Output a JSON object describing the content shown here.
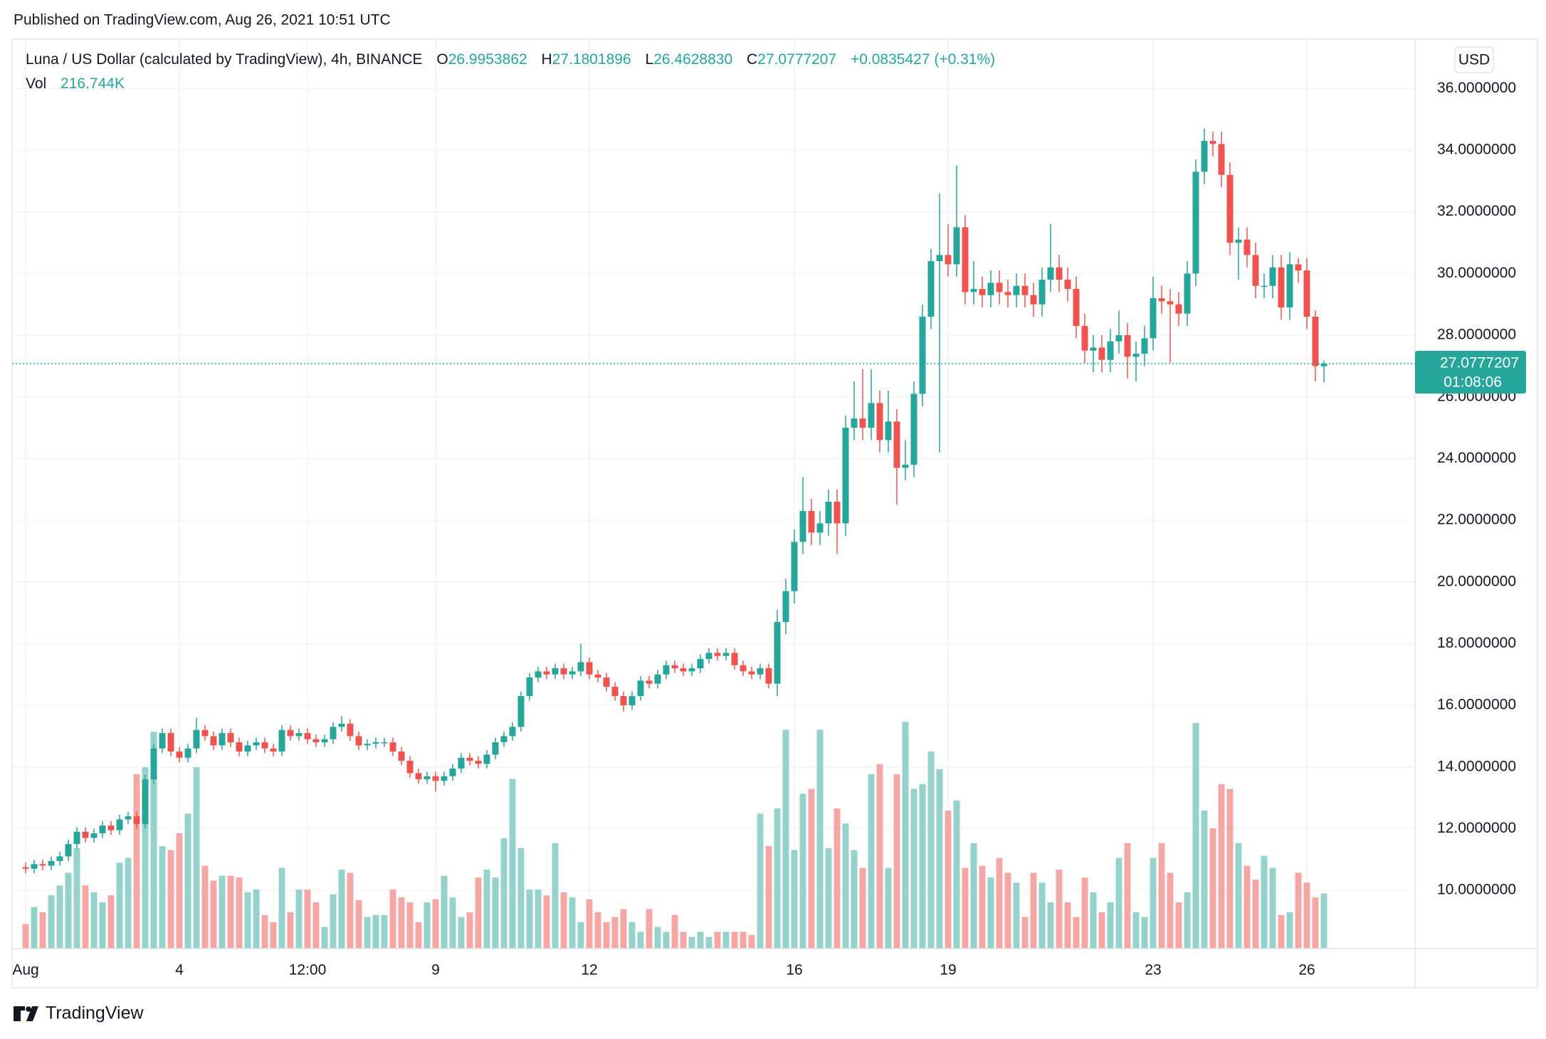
{
  "header": {
    "published": "Published on TradingView.com, Aug 26, 2021 10:51 UTC",
    "logo": "TradingView"
  },
  "chart_data": {
    "type": "candlestick",
    "title": "Luna / US Dollar (calculated by TradingView), 4h, BINANCE",
    "legend_values": [
      {
        "label": "O",
        "value": "26.9953862"
      },
      {
        "label": "H",
        "value": "27.1801896"
      },
      {
        "label": "L",
        "value": "26.4628830"
      },
      {
        "label": "C",
        "value": "27.0777207"
      }
    ],
    "change": "+0.0835427 (+0.31%)",
    "volume_name": "Vol",
    "volume_label": "216.744K",
    "currency": "USD",
    "last_price": {
      "value": 27.0777207,
      "label": "27.0777207"
    },
    "countdown": "01:08:06",
    "up_color": "#26a69a",
    "down_color": "#ef5350",
    "volume_up_color": "#94d2cb",
    "volume_down_color": "#f4a7a5",
    "grid": true,
    "ylim": [
      8.11,
      37.6
    ],
    "yticks": [
      {
        "value": 10,
        "label": "10.0000000"
      },
      {
        "value": 12,
        "label": "12.0000000"
      },
      {
        "value": 14,
        "label": "14.0000000"
      },
      {
        "value": 16,
        "label": "16.0000000"
      },
      {
        "value": 18,
        "label": "18.0000000"
      },
      {
        "value": 20,
        "label": "20.0000000"
      },
      {
        "value": 22,
        "label": "22.0000000"
      },
      {
        "value": 24,
        "label": "24.0000000"
      },
      {
        "value": 26,
        "label": "26.0000000"
      },
      {
        "value": 28,
        "label": "28.0000000"
      },
      {
        "value": 30,
        "label": "30.0000000"
      },
      {
        "value": 32,
        "label": "32.0000000"
      },
      {
        "value": 34,
        "label": "34.0000000"
      },
      {
        "value": 36,
        "label": "36.0000000"
      }
    ],
    "y2lim": [
      0,
      3570000
    ],
    "categories": [
      "Aug",
      null,
      null,
      null,
      null,
      null,
      null,
      null,
      null,
      null,
      null,
      null,
      null,
      null,
      null,
      null,
      null,
      null,
      "4",
      null,
      null,
      null,
      null,
      null,
      null,
      null,
      null,
      null,
      null,
      null,
      null,
      null,
      null,
      "12:00",
      null,
      null,
      null,
      null,
      null,
      null,
      null,
      null,
      null,
      null,
      null,
      null,
      null,
      null,
      "9",
      null,
      null,
      null,
      null,
      null,
      null,
      null,
      null,
      null,
      null,
      null,
      null,
      null,
      null,
      null,
      null,
      null,
      "12",
      null,
      null,
      null,
      null,
      null,
      null,
      null,
      null,
      null,
      null,
      null,
      null,
      null,
      null,
      null,
      null,
      null,
      null,
      null,
      null,
      null,
      null,
      null,
      "16",
      null,
      null,
      null,
      null,
      null,
      null,
      null,
      null,
      null,
      null,
      null,
      null,
      null,
      null,
      null,
      null,
      null,
      "19",
      null,
      null,
      null,
      null,
      null,
      null,
      null,
      null,
      null,
      null,
      null,
      null,
      null,
      null,
      null,
      null,
      null,
      null,
      null,
      null,
      null,
      null,
      null,
      "23",
      null,
      null,
      null,
      null,
      null,
      null,
      null,
      null,
      null,
      null,
      null,
      null,
      null,
      null,
      null,
      null,
      null,
      "26",
      null,
      null
    ],
    "open": [
      10.75,
      10.7,
      10.85,
      10.8,
      10.95,
      11.1,
      11.5,
      11.9,
      11.7,
      11.85,
      12.1,
      11.95,
      12.3,
      12.4,
      12.15,
      13.6,
      14.6,
      15.1,
      14.5,
      14.3,
      14.6,
      15.2,
      15.0,
      14.7,
      15.1,
      14.8,
      14.5,
      14.7,
      14.8,
      14.6,
      14.5,
      15.2,
      15.0,
      15.1,
      14.9,
      14.8,
      14.9,
      15.3,
      15.4,
      15.0,
      14.7,
      14.75,
      14.8,
      14.8,
      14.5,
      14.2,
      13.8,
      13.6,
      13.7,
      13.55,
      13.7,
      13.95,
      14.3,
      14.2,
      14.1,
      14.4,
      14.8,
      15.0,
      15.3,
      16.3,
      16.9,
      17.1,
      17.0,
      17.2,
      17.0,
      17.1,
      17.4,
      17.0,
      16.9,
      16.6,
      16.3,
      16.0,
      16.3,
      16.8,
      16.7,
      17.0,
      17.3,
      17.2,
      17.1,
      17.2,
      17.5,
      17.7,
      17.6,
      17.7,
      17.3,
      17.1,
      17.0,
      17.2,
      16.7,
      18.7,
      19.7,
      21.3,
      22.3,
      21.6,
      21.9,
      22.6,
      21.9,
      25.0,
      25.3,
      25.0,
      25.8,
      24.6,
      25.2,
      23.7,
      23.8,
      26.1,
      28.6,
      30.4,
      30.6,
      30.3,
      31.5,
      29.4,
      29.5,
      29.3,
      29.7,
      29.4,
      29.3,
      29.6,
      29.3,
      29.0,
      29.8,
      30.2,
      29.8,
      29.5,
      28.3,
      27.5,
      27.6,
      27.2,
      27.8,
      28.0,
      27.3,
      27.4,
      27.9,
      29.2,
      29.1,
      29.0,
      28.7,
      30.0,
      33.3,
      34.3,
      34.2,
      33.2,
      31.0,
      31.1,
      30.6,
      29.6,
      29.6,
      30.2,
      28.9,
      30.3,
      30.1,
      28.6,
      26.9953862
    ],
    "high": [
      10.9,
      11.0,
      11.0,
      11.1,
      11.25,
      11.65,
      12.05,
      12.05,
      12.0,
      12.25,
      12.25,
      12.45,
      12.55,
      12.55,
      13.75,
      14.75,
      15.25,
      15.25,
      14.65,
      14.75,
      15.6,
      15.35,
      15.15,
      15.25,
      15.25,
      14.95,
      14.85,
      14.95,
      14.95,
      14.75,
      15.35,
      15.35,
      15.25,
      15.25,
      15.05,
      15.05,
      15.45,
      15.65,
      15.55,
      15.15,
      14.9,
      14.95,
      14.95,
      14.95,
      14.65,
      14.35,
      13.95,
      13.85,
      13.85,
      13.85,
      14.1,
      14.45,
      14.45,
      14.35,
      14.55,
      14.95,
      15.15,
      15.45,
      16.45,
      17.05,
      17.25,
      17.25,
      17.35,
      17.35,
      17.25,
      18.0,
      17.55,
      17.15,
      17.05,
      16.75,
      16.45,
      16.45,
      16.95,
      16.95,
      17.15,
      17.45,
      17.45,
      17.35,
      17.35,
      17.65,
      17.85,
      17.85,
      17.85,
      17.85,
      17.45,
      17.25,
      17.35,
      17.35,
      19.1,
      20.1,
      21.7,
      23.4,
      22.7,
      22.3,
      23.0,
      23.0,
      25.4,
      26.5,
      26.9,
      26.9,
      26.2,
      26.2,
      25.6,
      24.6,
      26.5,
      29.0,
      30.8,
      32.6,
      31.6,
      33.5,
      31.9,
      30.4,
      29.9,
      30.1,
      30.1,
      29.8,
      30.0,
      30.0,
      29.7,
      30.2,
      31.6,
      30.6,
      30.2,
      29.9,
      28.7,
      28.0,
      28.0,
      28.2,
      28.8,
      28.4,
      27.8,
      28.3,
      29.9,
      29.6,
      29.5,
      29.4,
      30.4,
      33.7,
      34.7,
      34.6,
      34.6,
      33.6,
      31.5,
      31.5,
      31.0,
      30.0,
      30.6,
      30.6,
      30.7,
      30.5,
      30.5,
      28.8,
      27.1801896
    ],
    "low": [
      10.55,
      10.55,
      10.65,
      10.65,
      10.8,
      10.95,
      11.35,
      11.55,
      11.55,
      11.7,
      11.8,
      11.8,
      12.15,
      12.0,
      12.0,
      13.45,
      14.45,
      14.35,
      14.15,
      14.15,
      14.45,
      14.85,
      14.55,
      14.55,
      14.65,
      14.35,
      14.35,
      14.55,
      14.45,
      14.35,
      14.35,
      14.85,
      14.85,
      14.75,
      14.65,
      14.65,
      14.75,
      15.15,
      14.85,
      14.55,
      14.55,
      14.6,
      14.65,
      14.35,
      14.05,
      13.65,
      13.45,
      13.45,
      13.2,
      13.4,
      13.55,
      13.8,
      14.05,
      13.95,
      13.95,
      14.25,
      14.65,
      14.85,
      15.15,
      16.15,
      16.75,
      16.85,
      16.85,
      16.85,
      16.85,
      16.95,
      16.85,
      16.75,
      16.45,
      16.15,
      15.8,
      15.85,
      16.15,
      16.55,
      16.55,
      16.85,
      17.05,
      16.95,
      16.95,
      17.05,
      17.35,
      17.45,
      17.45,
      17.15,
      16.95,
      16.85,
      16.85,
      16.55,
      16.3,
      18.3,
      19.3,
      20.9,
      21.2,
      21.2,
      21.5,
      20.9,
      21.5,
      24.6,
      24.6,
      24.6,
      24.2,
      24.2,
      22.5,
      23.3,
      23.4,
      25.7,
      28.2,
      24.2,
      29.9,
      29.9,
      29.0,
      29.0,
      28.9,
      28.9,
      29.0,
      28.9,
      28.9,
      28.9,
      28.6,
      28.6,
      29.4,
      29.4,
      29.1,
      27.9,
      27.1,
      26.8,
      26.8,
      26.8,
      27.4,
      26.6,
      26.5,
      27.0,
      27.5,
      28.7,
      27.1,
      28.3,
      28.3,
      29.6,
      32.9,
      33.8,
      32.8,
      30.6,
      29.8,
      30.2,
      29.2,
      29.2,
      29.2,
      28.5,
      28.5,
      29.7,
      28.2,
      26.5,
      26.462883
    ],
    "close": [
      10.7,
      10.85,
      10.8,
      10.95,
      11.1,
      11.5,
      11.9,
      11.7,
      11.85,
      12.1,
      11.95,
      12.3,
      12.4,
      12.15,
      13.6,
      14.6,
      15.1,
      14.5,
      14.3,
      14.6,
      15.2,
      15.0,
      14.7,
      15.1,
      14.8,
      14.5,
      14.7,
      14.8,
      14.6,
      14.5,
      15.2,
      15.0,
      15.1,
      14.9,
      14.8,
      14.9,
      15.3,
      15.4,
      15.0,
      14.7,
      14.75,
      14.8,
      14.8,
      14.5,
      14.2,
      13.8,
      13.6,
      13.7,
      13.55,
      13.7,
      13.95,
      14.3,
      14.2,
      14.1,
      14.4,
      14.8,
      15.0,
      15.3,
      16.3,
      16.9,
      17.1,
      17.0,
      17.2,
      17.0,
      17.1,
      17.4,
      17.0,
      16.9,
      16.6,
      16.3,
      16.0,
      16.3,
      16.8,
      16.7,
      17.0,
      17.3,
      17.2,
      17.1,
      17.2,
      17.5,
      17.7,
      17.6,
      17.7,
      17.3,
      17.1,
      17.0,
      17.2,
      16.7,
      18.7,
      19.7,
      21.3,
      22.3,
      21.6,
      21.9,
      22.6,
      21.9,
      25.0,
      25.3,
      25.0,
      25.8,
      24.6,
      25.2,
      23.7,
      23.8,
      26.1,
      28.6,
      30.4,
      30.6,
      30.3,
      31.5,
      29.4,
      29.5,
      29.3,
      29.7,
      29.4,
      29.3,
      29.6,
      29.3,
      29.0,
      29.8,
      30.2,
      29.8,
      29.5,
      28.3,
      27.5,
      27.6,
      27.2,
      27.8,
      28.0,
      27.3,
      27.4,
      27.9,
      29.2,
      29.1,
      29.0,
      28.7,
      30.0,
      33.3,
      34.3,
      34.2,
      33.2,
      31.0,
      31.1,
      30.6,
      29.6,
      29.6,
      30.2,
      28.9,
      30.3,
      30.1,
      28.6,
      27.0,
      27.0777207
    ],
    "volume": [
      97000,
      163000,
      143000,
      209000,
      248000,
      298000,
      395000,
      248000,
      221000,
      182000,
      209000,
      337000,
      356000,
      685000,
      712000,
      851000,
      402000,
      387000,
      453000,
      530000,
      712000,
      325000,
      267000,
      286000,
      286000,
      279000,
      221000,
      232000,
      132000,
      104000,
      317000,
      143000,
      232000,
      232000,
      182000,
      85000,
      213000,
      310000,
      298000,
      190000,
      124000,
      132000,
      132000,
      232000,
      201000,
      182000,
      104000,
      182000,
      194000,
      286000,
      201000,
      124000,
      143000,
      279000,
      310000,
      279000,
      433000,
      666000,
      395000,
      232000,
      232000,
      209000,
      414000,
      221000,
      201000,
      104000,
      194000,
      143000,
      104000,
      124000,
      155000,
      104000,
      66000,
      155000,
      85000,
      66000,
      132000,
      66000,
      46000,
      66000,
      46000,
      66000,
      66000,
      66000,
      66000,
      54000,
      530000,
      402000,
      550000,
      859000,
      387000,
      608000,
      627000,
      859000,
      395000,
      550000,
      491000,
      387000,
      317000,
      685000,
      724000,
      317000,
      685000,
      890000,
      627000,
      646000,
      774000,
      704000,
      542000,
      581000,
      317000,
      414000,
      325000,
      279000,
      356000,
      298000,
      259000,
      124000,
      298000,
      259000,
      182000,
      310000,
      182000,
      124000,
      279000,
      221000,
      143000,
      182000,
      356000,
      414000,
      143000,
      124000,
      356000,
      414000,
      298000,
      182000,
      221000,
      886000,
      542000,
      472000,
      646000,
      627000,
      414000,
      325000,
      271000,
      364000,
      317000,
      132000,
      143000,
      298000,
      259000,
      201000,
      216744
    ]
  }
}
